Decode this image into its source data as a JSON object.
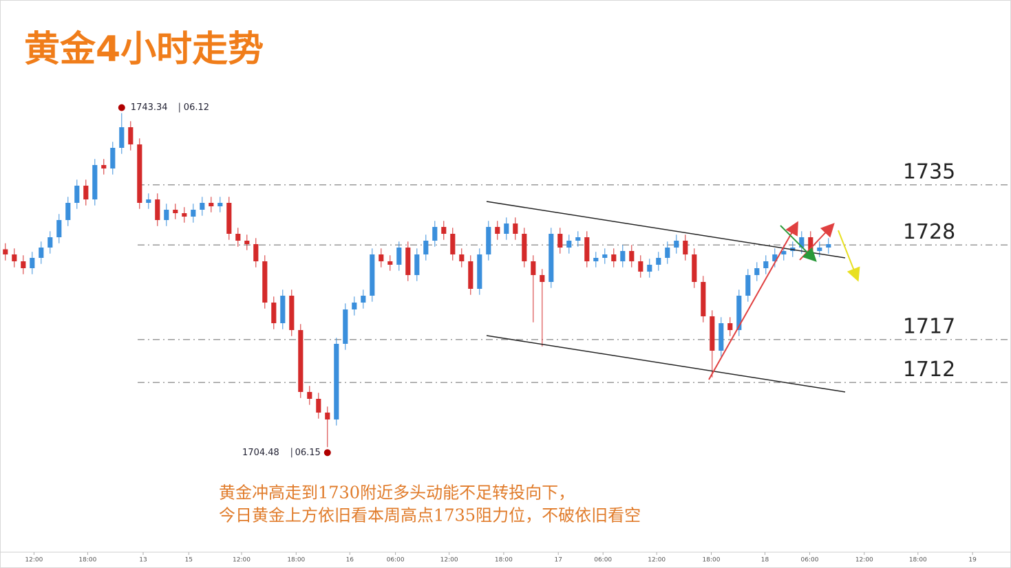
{
  "chart_data": {
    "type": "candlestick",
    "title": "黄金4小时走势",
    "up_color": "#3a8fdc",
    "down_color": "#d42a2a",
    "xlim": [
      -0.6,
      112.4
    ],
    "ylim": [
      1692.5,
      1756.5
    ],
    "xticks": [
      {
        "value": 3.2,
        "label": "12:00"
      },
      {
        "value": 9.2,
        "label": "18:00"
      },
      {
        "value": 15.4,
        "label": "13"
      },
      {
        "value": 20.5,
        "label": "15"
      },
      {
        "value": 26.4,
        "label": "12:00"
      },
      {
        "value": 32.5,
        "label": "18:00"
      },
      {
        "value": 38.5,
        "label": "16"
      },
      {
        "value": 43.6,
        "label": "06:00"
      },
      {
        "value": 49.6,
        "label": "12:00"
      },
      {
        "value": 55.7,
        "label": "18:00"
      },
      {
        "value": 61.8,
        "label": "17"
      },
      {
        "value": 66.8,
        "label": "06:00"
      },
      {
        "value": 72.8,
        "label": "12:00"
      },
      {
        "value": 78.9,
        "label": "18:00"
      },
      {
        "value": 84.9,
        "label": "18"
      },
      {
        "value": 89.9,
        "label": "06:00"
      },
      {
        "value": 96,
        "label": "12:00"
      },
      {
        "value": 102,
        "label": "18:00"
      },
      {
        "value": 108.1,
        "label": "19"
      }
    ],
    "levels": [
      1735,
      1728,
      1717,
      1712
    ],
    "extremes": [
      {
        "value": 1743.34,
        "date": "06.12"
      },
      {
        "value": 1704.48,
        "date": "06.15"
      }
    ],
    "annotation": [
      "黄金冲高走到1730附近多头动能不足转投向下，",
      "今日黄金上方依旧看本周高点1735阻力位，不破依旧看空"
    ],
    "ohlc": [
      [
        1727.5,
        1728.2,
        1726.2,
        1726.9
      ],
      [
        1726.9,
        1727.6,
        1725.4,
        1726.1
      ],
      [
        1726.1,
        1726.8,
        1724.6,
        1725.3
      ],
      [
        1725.3,
        1727.2,
        1724.6,
        1726.5
      ],
      [
        1726.5,
        1728.4,
        1725.8,
        1727.7
      ],
      [
        1727.7,
        1729.6,
        1727.0,
        1728.9
      ],
      [
        1728.9,
        1731.6,
        1728.2,
        1730.9
      ],
      [
        1730.9,
        1733.6,
        1730.2,
        1732.9
      ],
      [
        1732.9,
        1735.6,
        1732.2,
        1734.9
      ],
      [
        1734.9,
        1735.6,
        1732.6,
        1733.3
      ],
      [
        1733.3,
        1738.0,
        1732.6,
        1737.3
      ],
      [
        1737.3,
        1738.0,
        1736.2,
        1736.9
      ],
      [
        1736.9,
        1740.0,
        1736.2,
        1739.3
      ],
      [
        1739.3,
        1743.34,
        1738.6,
        1741.7
      ],
      [
        1741.7,
        1742.4,
        1739.0,
        1739.7
      ],
      [
        1739.7,
        1740.4,
        1732.2,
        1732.9
      ],
      [
        1732.9,
        1734.0,
        1732.2,
        1733.3
      ],
      [
        1733.3,
        1734.0,
        1730.2,
        1730.9
      ],
      [
        1730.9,
        1732.8,
        1730.2,
        1732.1
      ],
      [
        1732.1,
        1732.8,
        1731.0,
        1731.7
      ],
      [
        1731.7,
        1732.4,
        1730.6,
        1731.3
      ],
      [
        1731.3,
        1732.8,
        1730.6,
        1732.1
      ],
      [
        1732.1,
        1733.6,
        1731.4,
        1732.9
      ],
      [
        1732.9,
        1733.6,
        1731.8,
        1732.5
      ],
      [
        1732.5,
        1733.6,
        1731.8,
        1732.9
      ],
      [
        1732.9,
        1733.6,
        1728.6,
        1729.3
      ],
      [
        1729.3,
        1730.0,
        1727.8,
        1728.5
      ],
      [
        1728.5,
        1729.2,
        1727.4,
        1728.1
      ],
      [
        1728.1,
        1728.8,
        1725.4,
        1726.1
      ],
      [
        1726.1,
        1726.8,
        1720.6,
        1721.3
      ],
      [
        1721.3,
        1722.0,
        1718.2,
        1718.9
      ],
      [
        1718.9,
        1722.8,
        1718.2,
        1722.1
      ],
      [
        1722.1,
        1722.8,
        1717.4,
        1718.1
      ],
      [
        1718.1,
        1718.8,
        1710.2,
        1710.9
      ],
      [
        1710.9,
        1711.6,
        1709.4,
        1710.1
      ],
      [
        1710.1,
        1710.8,
        1707.8,
        1708.5
      ],
      [
        1708.5,
        1709.2,
        1704.48,
        1707.7
      ],
      [
        1707.7,
        1717.2,
        1707.0,
        1716.5
      ],
      [
        1716.5,
        1721.2,
        1715.8,
        1720.5
      ],
      [
        1720.5,
        1722.0,
        1719.8,
        1721.3
      ],
      [
        1721.3,
        1722.8,
        1720.6,
        1722.1
      ],
      [
        1722.1,
        1727.6,
        1721.4,
        1726.9
      ],
      [
        1726.9,
        1727.6,
        1725.4,
        1726.1
      ],
      [
        1726.1,
        1726.8,
        1725.0,
        1725.7
      ],
      [
        1725.7,
        1728.4,
        1725.0,
        1727.7
      ],
      [
        1727.7,
        1728.4,
        1723.8,
        1724.5
      ],
      [
        1724.5,
        1727.6,
        1723.8,
        1726.9
      ],
      [
        1726.9,
        1729.2,
        1726.2,
        1728.5
      ],
      [
        1728.5,
        1730.8,
        1727.8,
        1730.1
      ],
      [
        1730.1,
        1730.8,
        1728.6,
        1729.3
      ],
      [
        1729.3,
        1730.0,
        1726.2,
        1726.9
      ],
      [
        1726.9,
        1727.6,
        1725.4,
        1726.1
      ],
      [
        1726.1,
        1726.8,
        1722.2,
        1722.9
      ],
      [
        1722.9,
        1727.6,
        1722.2,
        1726.9
      ],
      [
        1726.9,
        1730.8,
        1726.2,
        1730.1
      ],
      [
        1730.1,
        1730.8,
        1728.6,
        1729.3
      ],
      [
        1729.3,
        1731.2,
        1728.6,
        1730.5
      ],
      [
        1730.5,
        1731.2,
        1728.6,
        1729.3
      ],
      [
        1729.3,
        1730.0,
        1725.4,
        1726.1
      ],
      [
        1726.1,
        1726.8,
        1719.0,
        1724.5
      ],
      [
        1724.5,
        1725.2,
        1716.2,
        1723.7
      ],
      [
        1723.7,
        1730.0,
        1723.0,
        1729.3
      ],
      [
        1729.3,
        1730.0,
        1727.0,
        1727.7
      ],
      [
        1727.7,
        1729.2,
        1727.0,
        1728.5
      ],
      [
        1728.5,
        1729.6,
        1727.8,
        1728.9
      ],
      [
        1728.9,
        1729.6,
        1725.4,
        1726.1
      ],
      [
        1726.1,
        1727.2,
        1725.4,
        1726.5
      ],
      [
        1726.5,
        1727.6,
        1725.8,
        1726.9
      ],
      [
        1726.9,
        1727.6,
        1725.4,
        1726.1
      ],
      [
        1726.1,
        1728.0,
        1725.4,
        1727.3
      ],
      [
        1727.3,
        1728.0,
        1725.4,
        1726.1
      ],
      [
        1726.1,
        1726.8,
        1724.2,
        1724.9
      ],
      [
        1724.9,
        1726.4,
        1724.2,
        1725.7
      ],
      [
        1725.7,
        1727.2,
        1725.0,
        1726.5
      ],
      [
        1726.5,
        1728.4,
        1725.8,
        1727.7
      ],
      [
        1727.7,
        1729.2,
        1727.0,
        1728.5
      ],
      [
        1728.5,
        1729.2,
        1726.2,
        1726.9
      ],
      [
        1726.9,
        1727.6,
        1723.0,
        1723.7
      ],
      [
        1723.7,
        1724.4,
        1719.0,
        1719.7
      ],
      [
        1719.7,
        1720.4,
        1712.6,
        1715.7
      ],
      [
        1715.7,
        1719.6,
        1715.0,
        1718.9
      ],
      [
        1718.9,
        1719.6,
        1717.4,
        1718.1
      ],
      [
        1718.1,
        1722.8,
        1717.4,
        1722.1
      ],
      [
        1722.1,
        1725.2,
        1721.4,
        1724.5
      ],
      [
        1724.5,
        1726.0,
        1723.8,
        1725.3
      ],
      [
        1725.3,
        1726.8,
        1724.6,
        1726.1
      ],
      [
        1726.1,
        1727.6,
        1725.4,
        1726.9
      ],
      [
        1726.9,
        1728.0,
        1726.2,
        1727.3
      ],
      [
        1727.3,
        1728.4,
        1726.6,
        1727.7
      ],
      [
        1727.7,
        1729.6,
        1727.0,
        1728.9
      ],
      [
        1728.9,
        1729.6,
        1726.6,
        1727.3
      ],
      [
        1727.3,
        1728.4,
        1726.6,
        1727.7
      ],
      [
        1727.7,
        1728.8,
        1727.0,
        1728.1
      ]
    ]
  }
}
